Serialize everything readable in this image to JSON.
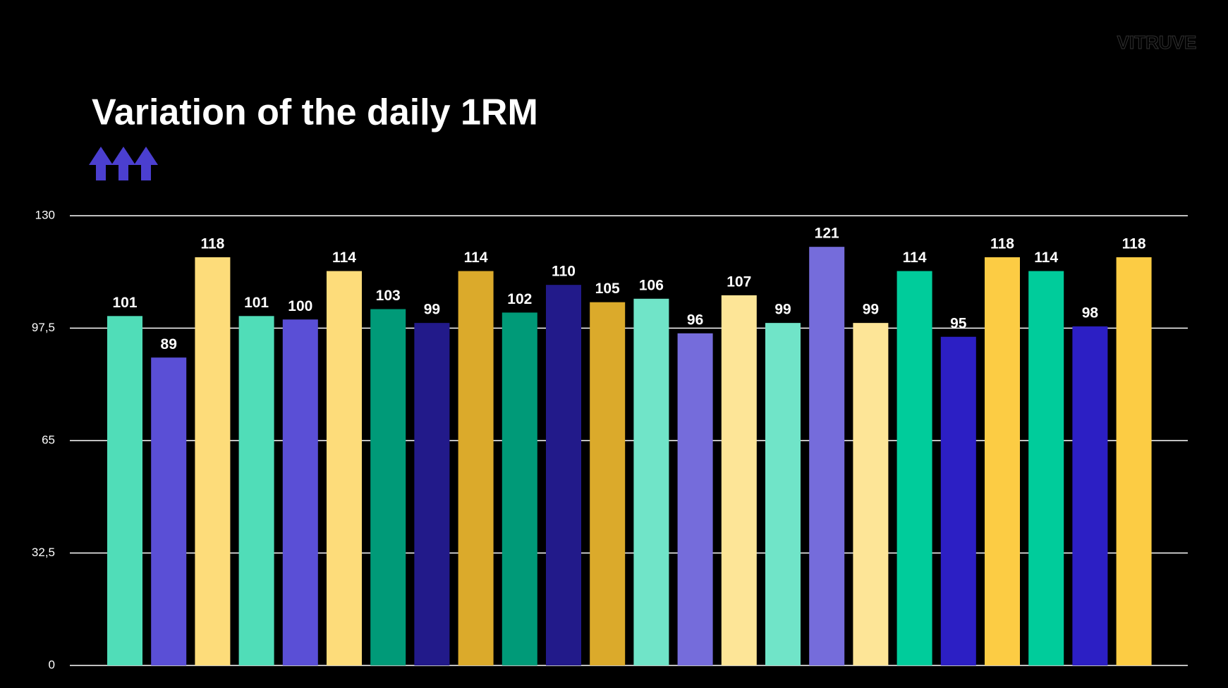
{
  "chart_data": {
    "type": "bar",
    "title": "Variation of the daily 1RM",
    "logo": "VITRUVE",
    "values": [
      101,
      89,
      118,
      101,
      100,
      114,
      103,
      99,
      114,
      102,
      110,
      105,
      106,
      96,
      107,
      99,
      121,
      99,
      114,
      95,
      118,
      114,
      98,
      118
    ],
    "colors": [
      "#50ddb8",
      "#5a4fd6",
      "#fddc7a",
      "#50ddb8",
      "#5a4fd6",
      "#fddc7a",
      "#009a78",
      "#221a8a",
      "#dbaa2b",
      "#009a78",
      "#221a8a",
      "#dbaa2b",
      "#70e4c8",
      "#756cdb",
      "#fde597",
      "#70e4c8",
      "#756cdb",
      "#fde597",
      "#00cc9b",
      "#2c1fc4",
      "#fccc44",
      "#00cc9b",
      "#2c1fc4",
      "#fccc44"
    ],
    "ylim": [
      0,
      130
    ],
    "yticks": [
      0,
      {
        "value": 32.5,
        "label": "32,5"
      },
      65,
      {
        "value": 97.5,
        "label": "97,5"
      },
      130
    ],
    "grid": true
  }
}
